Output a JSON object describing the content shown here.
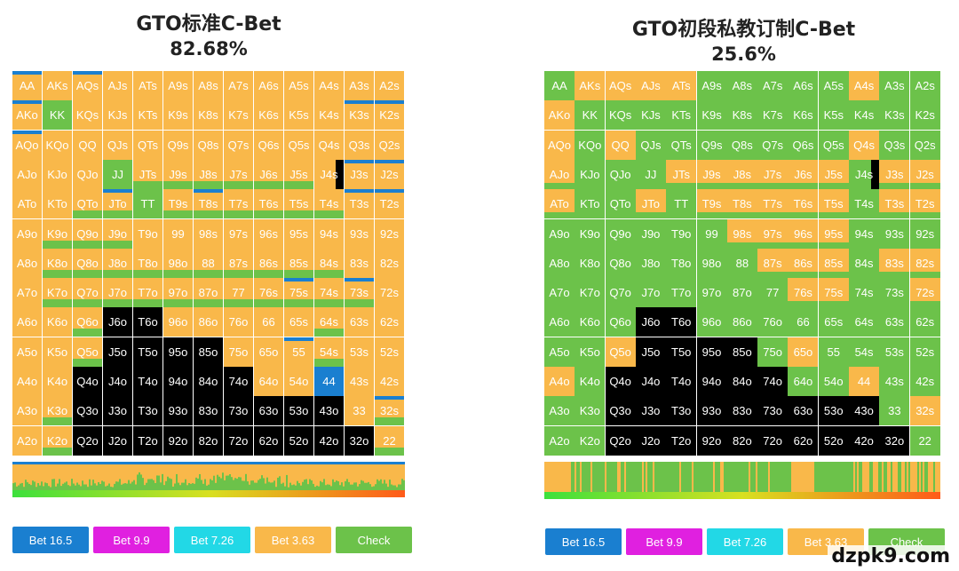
{
  "colors": {
    "orange": "#f9b84a",
    "green": "#6cc24a",
    "blue": "#1a7fd0",
    "black": "#000000",
    "magenta": "#e020e0",
    "cyan": "#22d8e6"
  },
  "ranks": [
    "A",
    "K",
    "Q",
    "J",
    "T",
    "9",
    "8",
    "7",
    "6",
    "5",
    "4",
    "3",
    "2"
  ],
  "chart_data": [
    {
      "type": "heatmap",
      "title": "GTO标准C-Bet",
      "subtitle": "82.68%",
      "rows": [
        [
          "O",
          "O",
          "O",
          "O",
          "O",
          "O",
          "O",
          "O",
          "O",
          "O",
          "O",
          "O",
          "O"
        ],
        [
          "O",
          "G",
          "O",
          "O",
          "O",
          "O",
          "O",
          "O",
          "O",
          "O",
          "O",
          "O",
          "O"
        ],
        [
          "O",
          "O",
          "O",
          "O",
          "O",
          "O",
          "O",
          "O",
          "O",
          "O",
          "O",
          "O",
          "O"
        ],
        [
          "O",
          "O",
          "O",
          "G",
          "O",
          "O",
          "O",
          "O",
          "O",
          "O",
          "O",
          "O",
          "O"
        ],
        [
          "O",
          "O",
          "O",
          "O",
          "G",
          "O",
          "O",
          "O",
          "O",
          "O",
          "O",
          "O",
          "O"
        ],
        [
          "O",
          "O",
          "O",
          "O",
          "O",
          "O",
          "O",
          "O",
          "O",
          "O",
          "O",
          "O",
          "O"
        ],
        [
          "O",
          "O",
          "O",
          "O",
          "O",
          "O",
          "O",
          "O",
          "O",
          "O",
          "O",
          "O",
          "O"
        ],
        [
          "O",
          "O",
          "O",
          "O",
          "O",
          "O",
          "O",
          "O",
          "O",
          "O",
          "O",
          "O",
          "O"
        ],
        [
          "O",
          "O",
          "O",
          "K",
          "K",
          "O",
          "O",
          "O",
          "O",
          "O",
          "O",
          "O",
          "O"
        ],
        [
          "O",
          "O",
          "O",
          "K",
          "K",
          "K",
          "K",
          "O",
          "O",
          "O",
          "O",
          "O",
          "O"
        ],
        [
          "O",
          "O",
          "K",
          "K",
          "K",
          "K",
          "K",
          "K",
          "O",
          "O",
          "B",
          "O",
          "O"
        ],
        [
          "O",
          "O",
          "K",
          "K",
          "K",
          "K",
          "K",
          "K",
          "K",
          "K",
          "K",
          "O",
          "O"
        ],
        [
          "O",
          "O",
          "K",
          "K",
          "K",
          "K",
          "K",
          "K",
          "K",
          "K",
          "K",
          "K",
          "O"
        ]
      ]
    },
    {
      "type": "heatmap",
      "title": "GTO初段私教订制C-Bet",
      "subtitle": "25.6%",
      "rows": [
        [
          "G",
          "O",
          "O",
          "O",
          "O",
          "G",
          "G",
          "G",
          "G",
          "G",
          "O",
          "G",
          "G"
        ],
        [
          "O",
          "G",
          "G",
          "G",
          "G",
          "G",
          "G",
          "G",
          "G",
          "G",
          "G",
          "G",
          "G"
        ],
        [
          "O",
          "G",
          "O",
          "G",
          "G",
          "G",
          "G",
          "G",
          "G",
          "G",
          "O",
          "G",
          "G"
        ],
        [
          "O",
          "G",
          "G",
          "G",
          "O",
          "O",
          "O",
          "O",
          "O",
          "O",
          "G",
          "O",
          "O"
        ],
        [
          "O",
          "G",
          "G",
          "O",
          "G",
          "O",
          "O",
          "O",
          "O",
          "O",
          "G",
          "O",
          "O"
        ],
        [
          "G",
          "G",
          "G",
          "G",
          "G",
          "G",
          "O",
          "O",
          "O",
          "O",
          "G",
          "G",
          "G"
        ],
        [
          "G",
          "G",
          "G",
          "G",
          "G",
          "G",
          "G",
          "O",
          "O",
          "O",
          "G",
          "O",
          "O"
        ],
        [
          "G",
          "G",
          "G",
          "G",
          "G",
          "G",
          "G",
          "G",
          "O",
          "O",
          "G",
          "G",
          "O"
        ],
        [
          "G",
          "G",
          "G",
          "K",
          "K",
          "G",
          "G",
          "G",
          "G",
          "G",
          "G",
          "G",
          "G"
        ],
        [
          "G",
          "G",
          "O",
          "K",
          "K",
          "K",
          "K",
          "G",
          "O",
          "G",
          "G",
          "G",
          "G"
        ],
        [
          "O",
          "G",
          "K",
          "K",
          "K",
          "K",
          "K",
          "K",
          "G",
          "G",
          "O",
          "G",
          "G"
        ],
        [
          "G",
          "G",
          "K",
          "K",
          "K",
          "K",
          "K",
          "K",
          "K",
          "K",
          "K",
          "G",
          "O"
        ],
        [
          "G",
          "G",
          "K",
          "K",
          "K",
          "K",
          "K",
          "K",
          "K",
          "K",
          "K",
          "K",
          "G"
        ]
      ]
    }
  ],
  "legend": [
    {
      "label": "Bet 16.5",
      "color": "#1a7fd0"
    },
    {
      "label": "Bet 9.9",
      "color": "#e020e0"
    },
    {
      "label": "Bet 7.26",
      "color": "#22d8e6"
    },
    {
      "label": "Bet 3.63",
      "color": "#f9b84a"
    },
    {
      "label": "Check",
      "color": "#6cc24a"
    }
  ],
  "watermark": "dzpk9.com"
}
